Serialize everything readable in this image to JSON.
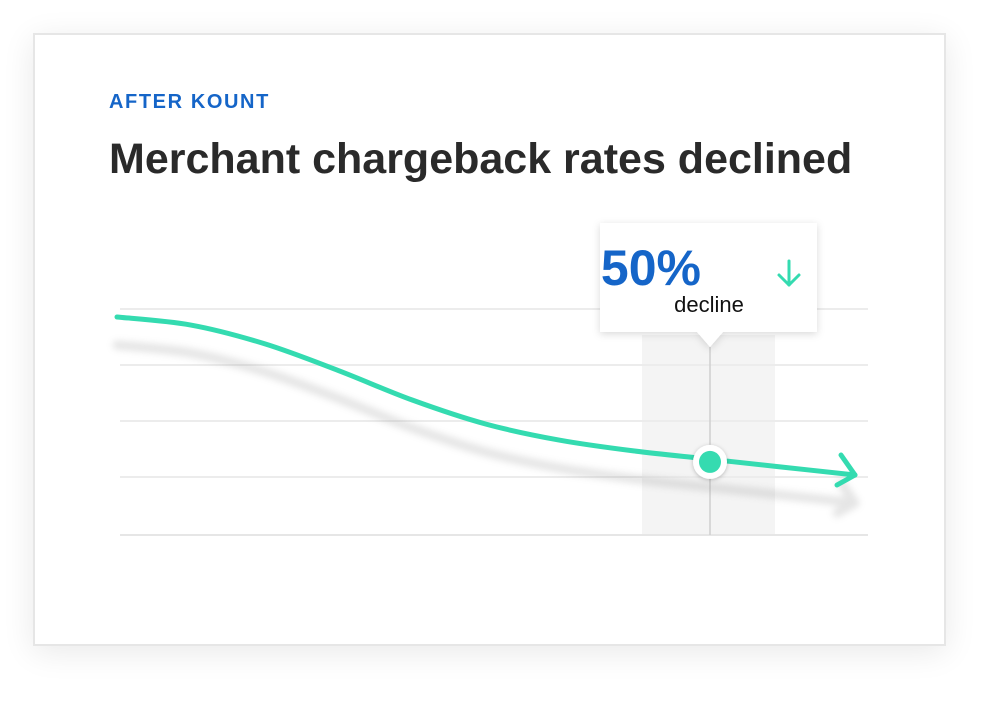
{
  "card": {
    "eyebrow": "AFTER KOUNT",
    "title": "Merchant chargeback rates declined"
  },
  "callout": {
    "value": "50%",
    "label": "decline",
    "arrow_icon": "arrow-down-icon"
  },
  "colors": {
    "accent_blue": "#1565c8",
    "line_teal": "#34dbb0",
    "title_text": "#2a2a2a"
  },
  "chart_data": {
    "type": "line",
    "title": "Merchant chargeback rates declined",
    "xlabel": "",
    "ylabel": "",
    "grid": true,
    "highlight": {
      "label": "50% decline"
    },
    "series": [
      {
        "x": [
          0.0,
          0.1,
          0.2,
          0.3,
          0.4,
          0.5,
          0.6,
          0.7,
          0.8,
          0.9,
          1.0
        ],
        "values": [
          1.0,
          0.97,
          0.9,
          0.8,
          0.69,
          0.6,
          0.54,
          0.5,
          0.47,
          0.44,
          0.41
        ]
      }
    ]
  }
}
